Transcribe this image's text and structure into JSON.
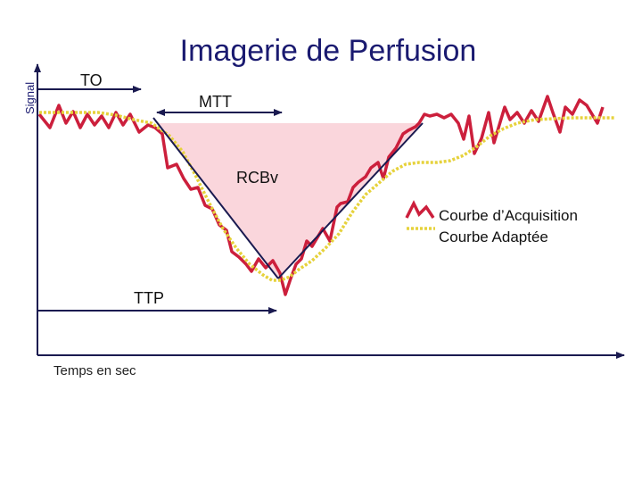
{
  "title": "Imagerie de Perfusion",
  "y_axis_label": "Signal",
  "x_axis_label": "Temps en sec",
  "labels": {
    "to": "TO",
    "mtt": "MTT",
    "rcbv": "RCBv",
    "ttp": "TTP"
  },
  "legend": {
    "acquisition": "Courbe d’Acquisition",
    "adapted": "Courbe Adaptée"
  },
  "colors": {
    "acquisition": "#cc1f3c",
    "adapted": "#e6d23c",
    "fill": "#fad6dc",
    "triangle": "#1a1a50",
    "axis": "#1a1a50"
  }
}
